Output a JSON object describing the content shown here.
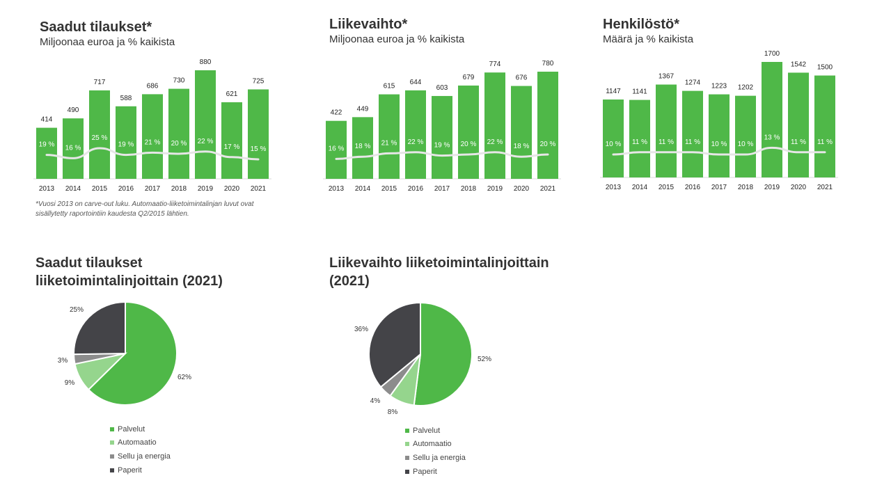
{
  "colors": {
    "bar": "#4fb848",
    "trend_line": "#e6e6e6",
    "axis": "#d9d9d9",
    "palvelut": "#4fb848",
    "automaatio": "#95d58d",
    "sellu": "#8c8c8c",
    "paperit": "#444448"
  },
  "footnote": "*Vuosi 2013 on carve-out luku. Automaatio-liiketoimintalinjan luvut ovat sisällytetty raportointiin kaudesta Q2/2015 lähtien.",
  "chart_data": [
    {
      "type": "bar",
      "title": "Saadut tilaukset*",
      "subtitle": "Miljoonaa euroa ja % kaikista",
      "categories": [
        "2013",
        "2014",
        "2015",
        "2016",
        "2017",
        "2018",
        "2019",
        "2020",
        "2021"
      ],
      "values": [
        414,
        490,
        717,
        588,
        686,
        730,
        880,
        621,
        725
      ],
      "shares": [
        "19 %",
        "16 %",
        "25 %",
        "19 %",
        "21 %",
        "20 %",
        "22 %",
        "17 %",
        "15 %"
      ],
      "share_values": [
        19,
        16,
        25,
        19,
        21,
        20,
        22,
        17,
        15
      ],
      "ylim": [
        0,
        880
      ]
    },
    {
      "type": "bar",
      "title": "Liikevaihto*",
      "subtitle": "Miljoonaa euroa ja % kaikista",
      "categories": [
        "2013",
        "2014",
        "2015",
        "2016",
        "2017",
        "2018",
        "2019",
        "2020",
        "2021"
      ],
      "values": [
        422,
        449,
        615,
        644,
        603,
        679,
        774,
        676,
        780
      ],
      "shares": [
        "16 %",
        "18 %",
        "21 %",
        "22 %",
        "19 %",
        "20 %",
        "22 %",
        "18 %",
        "20 %"
      ],
      "share_values": [
        16,
        18,
        21,
        22,
        19,
        20,
        22,
        18,
        20
      ],
      "ylim": [
        0,
        780
      ]
    },
    {
      "type": "bar",
      "title": "Henkilöstö*",
      "subtitle": "Määrä ja % kaikista",
      "categories": [
        "2013",
        "2014",
        "2015",
        "2016",
        "2017",
        "2018",
        "2019",
        "2020",
        "2021"
      ],
      "values": [
        1147,
        1141,
        1367,
        1274,
        1223,
        1202,
        1700,
        1542,
        1500
      ],
      "shares": [
        "10 %",
        "11 %",
        "11 %",
        "11 %",
        "10 %",
        "10 %",
        "13 %",
        "11 %",
        "11 %"
      ],
      "share_values": [
        10,
        11,
        11,
        11,
        10,
        10,
        13,
        11,
        11
      ],
      "ylim": [
        0,
        1700
      ]
    },
    {
      "type": "pie",
      "title": "Saadut tilaukset liiketoimintalinjoittain  (2021)",
      "slices": [
        {
          "label": "Palvelut",
          "value": 62,
          "text": "62%",
          "color_key": "palvelut"
        },
        {
          "label": "Automaatio",
          "value": 9,
          "text": "9%",
          "color_key": "automaatio"
        },
        {
          "label": "Sellu ja energia",
          "value": 3,
          "text": "3%",
          "color_key": "sellu"
        },
        {
          "label": "Paperit",
          "value": 25,
          "text": "25%",
          "color_key": "paperit"
        }
      ]
    },
    {
      "type": "pie",
      "title": "Liikevaihto liiketoimintalinjoittain  (2021)",
      "slices": [
        {
          "label": "Palvelut",
          "value": 52,
          "text": "52%",
          "color_key": "palvelut"
        },
        {
          "label": "Automaatio",
          "value": 8,
          "text": "8%",
          "color_key": "automaatio"
        },
        {
          "label": "Sellu ja energia",
          "value": 4,
          "text": "4%",
          "color_key": "sellu"
        },
        {
          "label": "Paperit",
          "value": 36,
          "text": "36%",
          "color_key": "paperit"
        }
      ]
    }
  ]
}
